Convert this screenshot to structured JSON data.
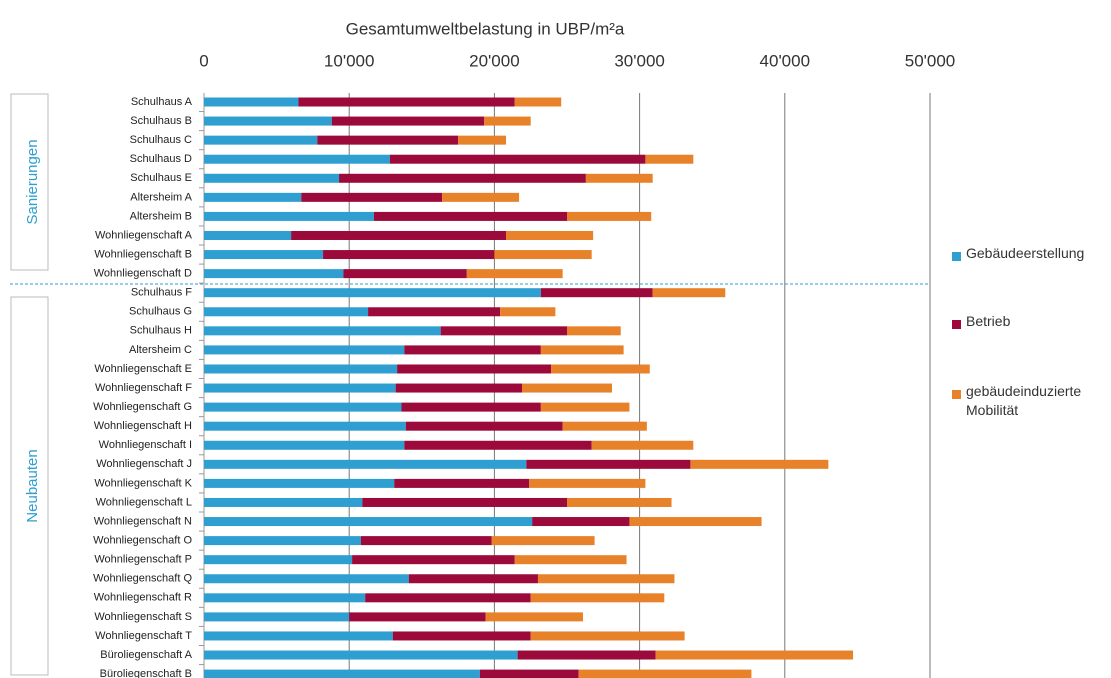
{
  "chart_data": {
    "type": "stacked-bar-horizontal",
    "title": "Gesamtumweltbelastung  in UBP/m²a",
    "groups": [
      "Sanierungen",
      "Neubauten"
    ],
    "categories": [
      "Schulhaus A",
      "Schulhaus B",
      "Schulhaus C",
      "Schulhaus D",
      "Schulhaus E",
      "Altersheim A",
      "Altersheim B",
      "Wohnliegenschaft A",
      "Wohnliegenschaft B",
      "Wohnliegenschaft D",
      "Schulhaus F",
      "Schulhaus G",
      "Schulhaus H",
      "Altersheim C",
      "Wohnliegenschaft E",
      "Wohnliegenschaft F",
      "Wohnliegenschaft G",
      "Wohnliegenschaft H",
      "Wohnliegenschaft I",
      "Wohnliegenschaft J",
      "Wohnliegenschaft K",
      "Wohnliegenschaft L",
      "Wohnliegenschaft N",
      "Wohnliegenschaft O",
      "Wohnliegenschaft P",
      "Wohnliegenschaft Q",
      "Wohnliegenschaft R",
      "Wohnliegenschaft S",
      "Wohnliegenschaft T",
      "Büroliegenschaft A",
      "Büroliegenschaft B"
    ],
    "series": [
      {
        "name": "Gebäudeerstellung",
        "color": "#2e9fd0",
        "values": [
          6500,
          8800,
          7800,
          12800,
          9300,
          6700,
          11700,
          6000,
          8200,
          9600,
          23200,
          11300,
          16300,
          13800,
          13300,
          13200,
          13600,
          13900,
          13800,
          22200,
          13100,
          10900,
          22600,
          10800,
          10200,
          14100,
          11100,
          10000,
          13000,
          21600,
          19000
        ]
      },
      {
        "name": "Betrieb",
        "color": "#9b0a3b",
        "values": [
          14900,
          10500,
          9700,
          17600,
          17000,
          9700,
          13300,
          14800,
          11800,
          8500,
          7700,
          9100,
          8700,
          9400,
          10600,
          8700,
          9600,
          10800,
          12900,
          11300,
          9300,
          14100,
          6700,
          9000,
          11200,
          8900,
          11400,
          9400,
          9500,
          9500,
          6800
        ]
      },
      {
        "name": "gebäudeinduzierte Mobilität",
        "color": "#e8822a",
        "values": [
          3200,
          3200,
          3300,
          3300,
          4600,
          5300,
          5800,
          6000,
          6700,
          6600,
          5000,
          3800,
          3700,
          5700,
          6800,
          6200,
          6100,
          5800,
          7000,
          9500,
          8000,
          7200,
          9100,
          7100,
          7700,
          9400,
          9200,
          6700,
          10600,
          13600,
          11900
        ]
      }
    ],
    "xlim": [
      0,
      50000
    ],
    "xticks": [
      0,
      {
        "value": 10000,
        "label": "10'000"
      },
      {
        "value": 20000,
        "label": "20'000"
      },
      {
        "value": 30000,
        "label": "30'000"
      },
      {
        "value": 40000,
        "label": "40'000"
      },
      {
        "value": 50000,
        "label": "50'000"
      }
    ],
    "grid": true,
    "legend": "right"
  }
}
